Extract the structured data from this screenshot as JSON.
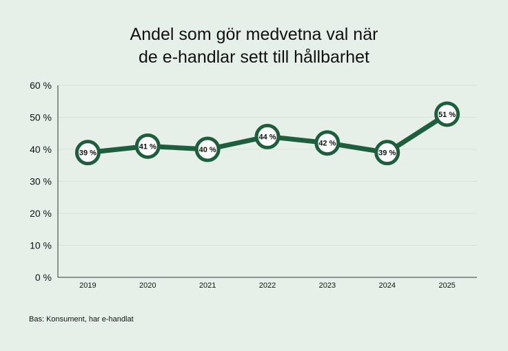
{
  "title_lines": [
    "Andel som gör medvetna val när",
    "de e-handlar sett till hållbarhet"
  ],
  "footnote": "Bas: Konsument, har e-handlat",
  "colors": {
    "line": "#1d5f3d",
    "background": "#e6f0e9",
    "marker_fill": "#ffffff"
  },
  "chart_data": {
    "type": "line",
    "title": "Andel som gör medvetna val när de e-handlar sett till hållbarhet",
    "x": [
      "2019",
      "2020",
      "2021",
      "2022",
      "2023",
      "2024",
      "2025"
    ],
    "series": [
      {
        "values": [
          39,
          41,
          40,
          44,
          42,
          39,
          51
        ]
      }
    ],
    "data_labels": [
      "39 %",
      "41 %",
      "40 %",
      "44 %",
      "42 %",
      "39 %",
      "51 %"
    ],
    "y_ticks": [
      "0 %",
      "10 %",
      "20 %",
      "30 %",
      "40 %",
      "50 %",
      "60 %"
    ],
    "ylim": [
      0,
      60
    ],
    "xlabel": "",
    "ylabel": "",
    "grid": true,
    "legend": "none"
  }
}
